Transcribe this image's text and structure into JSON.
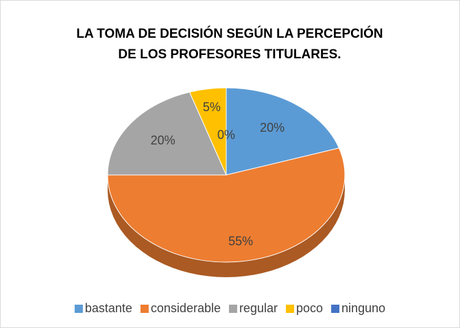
{
  "chart_data": {
    "type": "pie",
    "title": [
      "LA TOMA DE DECISIÓN SEGÚN LA PERCEPCIÓN",
      "DE LOS PROFESORES TITULARES."
    ],
    "categories": [
      "bastante",
      "considerable",
      "regular",
      "poco",
      "ninguno"
    ],
    "values": [
      20,
      55,
      20,
      5,
      0
    ],
    "value_labels": [
      "20%",
      "55%",
      "20%",
      "5%",
      "0%"
    ],
    "colors": [
      "#5b9bd5",
      "#ed7d31",
      "#a5a5a5",
      "#ffc000",
      "#4472c4"
    ],
    "legend": "bottom"
  }
}
